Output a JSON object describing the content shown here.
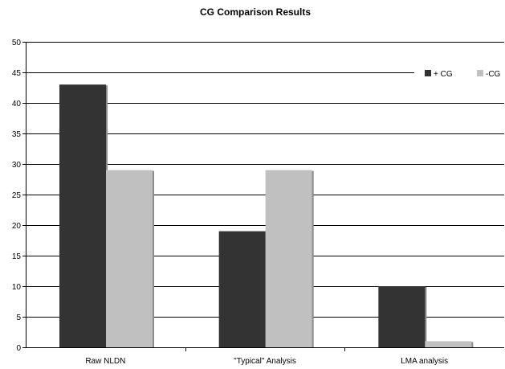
{
  "chart_data": {
    "type": "bar",
    "title": "CG Comparison Results",
    "xlabel": "",
    "ylabel": "",
    "categories": [
      "Raw NLDN",
      "\"Typical\" Analysis",
      "LMA analysis"
    ],
    "series": [
      {
        "name": "+ CG",
        "values": [
          43,
          19,
          10
        ],
        "color": "#333333"
      },
      {
        "name": "-CG",
        "values": [
          29,
          29,
          1
        ],
        "color": "#c0c0c0"
      }
    ],
    "ylim": [
      0,
      50
    ],
    "yticks": [
      0,
      5,
      10,
      15,
      20,
      25,
      30,
      35,
      40,
      45,
      50
    ],
    "grid": true,
    "legend_position": "top-right"
  }
}
